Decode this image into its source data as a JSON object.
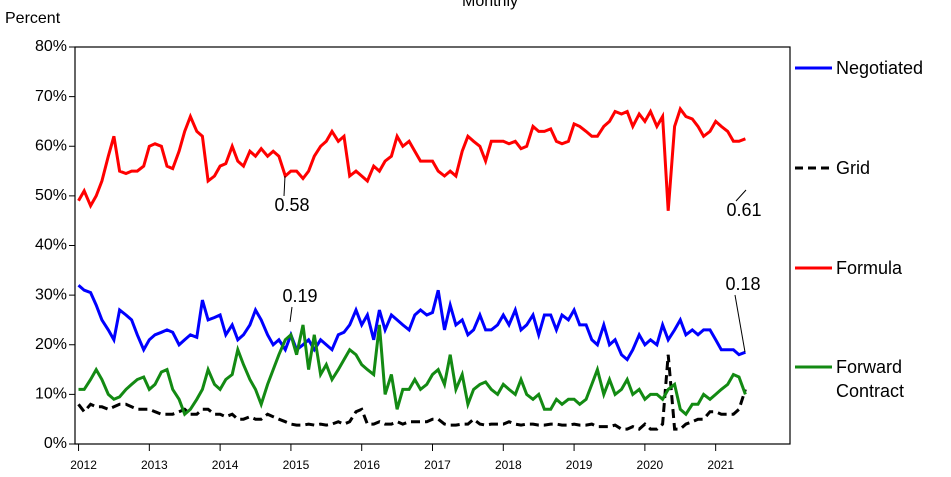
{
  "chart_data": {
    "type": "line",
    "title": "Monthly",
    "y_label": "Percent",
    "x": [
      2012,
      2012.08,
      2012.17,
      2012.25,
      2012.33,
      2012.42,
      2012.5,
      2012.58,
      2012.67,
      2012.75,
      2012.83,
      2012.92,
      2013,
      2013.08,
      2013.17,
      2013.25,
      2013.33,
      2013.42,
      2013.5,
      2013.58,
      2013.67,
      2013.75,
      2013.83,
      2013.92,
      2014,
      2014.08,
      2014.17,
      2014.25,
      2014.33,
      2014.42,
      2014.5,
      2014.58,
      2014.67,
      2014.75,
      2014.83,
      2014.92,
      2015,
      2015.08,
      2015.17,
      2015.25,
      2015.33,
      2015.42,
      2015.5,
      2015.58,
      2015.67,
      2015.75,
      2015.83,
      2015.92,
      2016,
      2016.08,
      2016.17,
      2016.25,
      2016.33,
      2016.42,
      2016.5,
      2016.58,
      2016.67,
      2016.75,
      2016.83,
      2016.92,
      2017,
      2017.08,
      2017.17,
      2017.25,
      2017.33,
      2017.42,
      2017.5,
      2017.58,
      2017.67,
      2017.75,
      2017.83,
      2017.92,
      2018,
      2018.08,
      2018.17,
      2018.25,
      2018.33,
      2018.42,
      2018.5,
      2018.58,
      2018.67,
      2018.75,
      2018.83,
      2018.92,
      2019,
      2019.08,
      2019.17,
      2019.25,
      2019.33,
      2019.42,
      2019.5,
      2019.58,
      2019.67,
      2019.75,
      2019.83,
      2019.92,
      2020,
      2020.08,
      2020.17,
      2020.25,
      2020.33,
      2020.42,
      2020.5,
      2020.58,
      2020.67,
      2020.75,
      2020.83,
      2020.92,
      2021,
      2021.08,
      2021.17,
      2021.25,
      2021.33,
      2021.42
    ],
    "series": [
      {
        "name": "Negotiated",
        "color": "#0000ff",
        "dash": false,
        "values": [
          32,
          31,
          30.5,
          28,
          25,
          23,
          21,
          27,
          26,
          25,
          22,
          19,
          21,
          22,
          22.5,
          23,
          22.5,
          20,
          21,
          22,
          21.5,
          29,
          25,
          25.5,
          26,
          22,
          24,
          21,
          22,
          24,
          27,
          25,
          22,
          20,
          21,
          19,
          22,
          19,
          20,
          21,
          19,
          21,
          20,
          19,
          22,
          22.5,
          24,
          27,
          24,
          26,
          21,
          27,
          23,
          26,
          25,
          24,
          23,
          26,
          27,
          26,
          26.5,
          31,
          23,
          28,
          24,
          25,
          22,
          23,
          26,
          23,
          23,
          24,
          26,
          24,
          27,
          23,
          24,
          26,
          22,
          26,
          26,
          23,
          26,
          25,
          27,
          24,
          24,
          21,
          20,
          24,
          20,
          21,
          18,
          17,
          19,
          22,
          20,
          21,
          20,
          24,
          21,
          23,
          25,
          22,
          23,
          22,
          23,
          23,
          21,
          19,
          19,
          19,
          18,
          18.5
        ]
      },
      {
        "name": "Grid",
        "color": "#000000",
        "dash": true,
        "values": [
          8,
          6.5,
          8,
          7.5,
          7.5,
          7,
          7.5,
          8,
          8,
          7.5,
          7,
          7,
          7,
          6.5,
          6,
          6,
          6,
          6.5,
          7,
          6,
          6,
          7,
          7,
          6,
          6,
          5.5,
          6,
          5,
          5,
          5.5,
          5,
          5,
          6,
          5.5,
          5,
          4.5,
          4,
          3.8,
          3.8,
          4,
          3.8,
          4,
          3.8,
          4,
          4.5,
          4,
          4.5,
          6.5,
          7,
          4,
          4,
          4.5,
          4,
          4,
          4.5,
          4,
          4.5,
          4.5,
          4.5,
          4.5,
          5,
          5,
          4,
          3.8,
          3.8,
          4,
          4,
          5,
          4,
          3.8,
          4,
          4,
          4,
          4.5,
          4,
          3.8,
          4,
          4,
          3.8,
          3.8,
          4,
          4,
          3.8,
          3.8,
          4,
          3.8,
          3.8,
          4,
          3.5,
          3.5,
          3.5,
          3.8,
          3,
          3,
          3.5,
          3,
          4,
          3,
          3,
          4,
          18,
          3,
          3,
          4,
          4.5,
          5,
          5,
          6.5,
          6.5,
          6,
          6,
          6,
          7,
          11
        ]
      },
      {
        "name": "Formula",
        "color": "#ff0000",
        "dash": false,
        "values": [
          49,
          51,
          48,
          50,
          53,
          58,
          62,
          55,
          54.5,
          55,
          55,
          56,
          60,
          60.5,
          60,
          56,
          55.5,
          59,
          63,
          66,
          63,
          62,
          53,
          54,
          56,
          56.5,
          60,
          57,
          56,
          59,
          58,
          59.5,
          58,
          59,
          58,
          54,
          55,
          55,
          53.5,
          55,
          58,
          60,
          61,
          63,
          61,
          62,
          54,
          55,
          54,
          53,
          56,
          55,
          57,
          58,
          62,
          60,
          61,
          59,
          57,
          57,
          57,
          55,
          54,
          55,
          54,
          59,
          62,
          61,
          60,
          57,
          61,
          61,
          61,
          60.5,
          61,
          59.5,
          60,
          64,
          63,
          63,
          63.5,
          61,
          60.5,
          61,
          64.5,
          64,
          63,
          62,
          62,
          64,
          65,
          67,
          66.5,
          67,
          64,
          66.5,
          65,
          67,
          64,
          66,
          47,
          64,
          67.5,
          66,
          65.5,
          64,
          62,
          63,
          65,
          64,
          63,
          61,
          61,
          61.5
        ]
      },
      {
        "name": "Forward Contract",
        "color": "#138a13",
        "dash": false,
        "values": [
          11,
          11,
          13,
          15,
          13,
          10,
          9,
          9.5,
          11,
          12,
          13,
          13.5,
          11,
          12,
          14.5,
          15,
          11,
          9,
          6,
          7,
          9,
          11,
          15,
          12,
          11,
          13,
          14,
          19,
          16,
          13,
          11,
          8,
          12,
          15,
          18,
          21,
          22,
          18,
          24,
          15,
          22,
          14,
          16,
          13,
          15,
          17,
          19,
          18,
          16,
          15,
          14,
          24,
          10,
          14,
          7,
          11,
          11,
          13,
          11,
          12,
          14,
          15,
          12,
          18,
          11,
          14,
          8,
          11,
          12,
          12.5,
          11,
          10,
          12,
          11,
          10,
          13,
          10,
          9,
          10,
          7,
          7,
          9,
          8,
          9,
          9,
          8,
          9,
          12,
          15,
          10,
          13,
          10,
          11,
          13,
          10,
          11,
          9,
          10,
          10,
          9,
          11,
          12,
          7,
          6,
          8,
          8,
          10,
          9,
          10,
          11,
          12,
          14,
          13.5,
          10
        ]
      }
    ],
    "annotations": [
      "0.58",
      "0.19",
      "0.61",
      "0.18"
    ],
    "xlim": [
      2011.95,
      2022.05
    ],
    "xticks": [
      2012,
      2013,
      2014,
      2015,
      2016,
      2017,
      2018,
      2019,
      2020,
      2021
    ],
    "ylim": [
      0,
      80
    ],
    "yticks": [
      {
        "value": 0,
        "label": "0%"
      },
      {
        "value": 10,
        "label": "10%"
      },
      {
        "value": 20,
        "label": "20%"
      },
      {
        "value": 30,
        "label": "30%"
      },
      {
        "value": 40,
        "label": "40%"
      },
      {
        "value": 50,
        "label": "50%"
      },
      {
        "value": 60,
        "label": "60%"
      },
      {
        "value": 70,
        "label": "70%"
      },
      {
        "value": 80,
        "label": "80%"
      }
    ],
    "grid": false,
    "legend": "right"
  }
}
